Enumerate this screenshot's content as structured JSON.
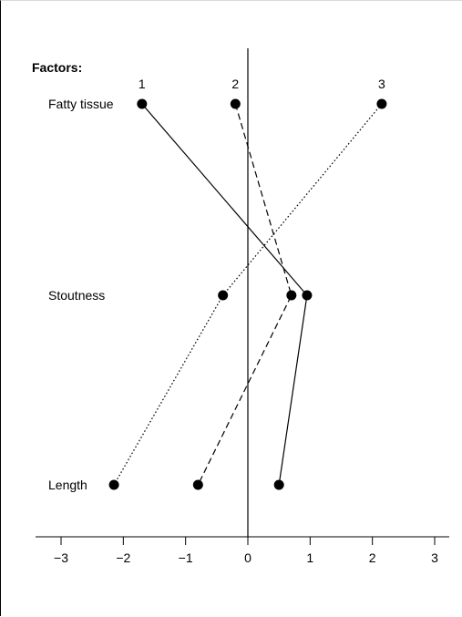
{
  "chart_data": {
    "type": "line",
    "title": "Factors:",
    "categories": [
      "Fatty tissue",
      "Stoutness",
      "Length"
    ],
    "series": [
      {
        "name": "1",
        "values": [
          -1.7,
          0.95,
          0.5
        ],
        "dash": "solid"
      },
      {
        "name": "2",
        "values": [
          -0.2,
          0.7,
          -0.8
        ],
        "dash": "dashed"
      },
      {
        "name": "3",
        "values": [
          2.15,
          -0.4,
          -2.15
        ],
        "dash": "dotted"
      }
    ],
    "xlim": [
      -3,
      3
    ],
    "xticks": [
      "−3",
      "−2",
      "−1",
      "0",
      "1",
      "2",
      "3"
    ],
    "xtick_values": [
      -3,
      -2,
      -1,
      0,
      1,
      2,
      3
    ],
    "grid": false,
    "colors": {
      "ink": "#000000"
    }
  }
}
